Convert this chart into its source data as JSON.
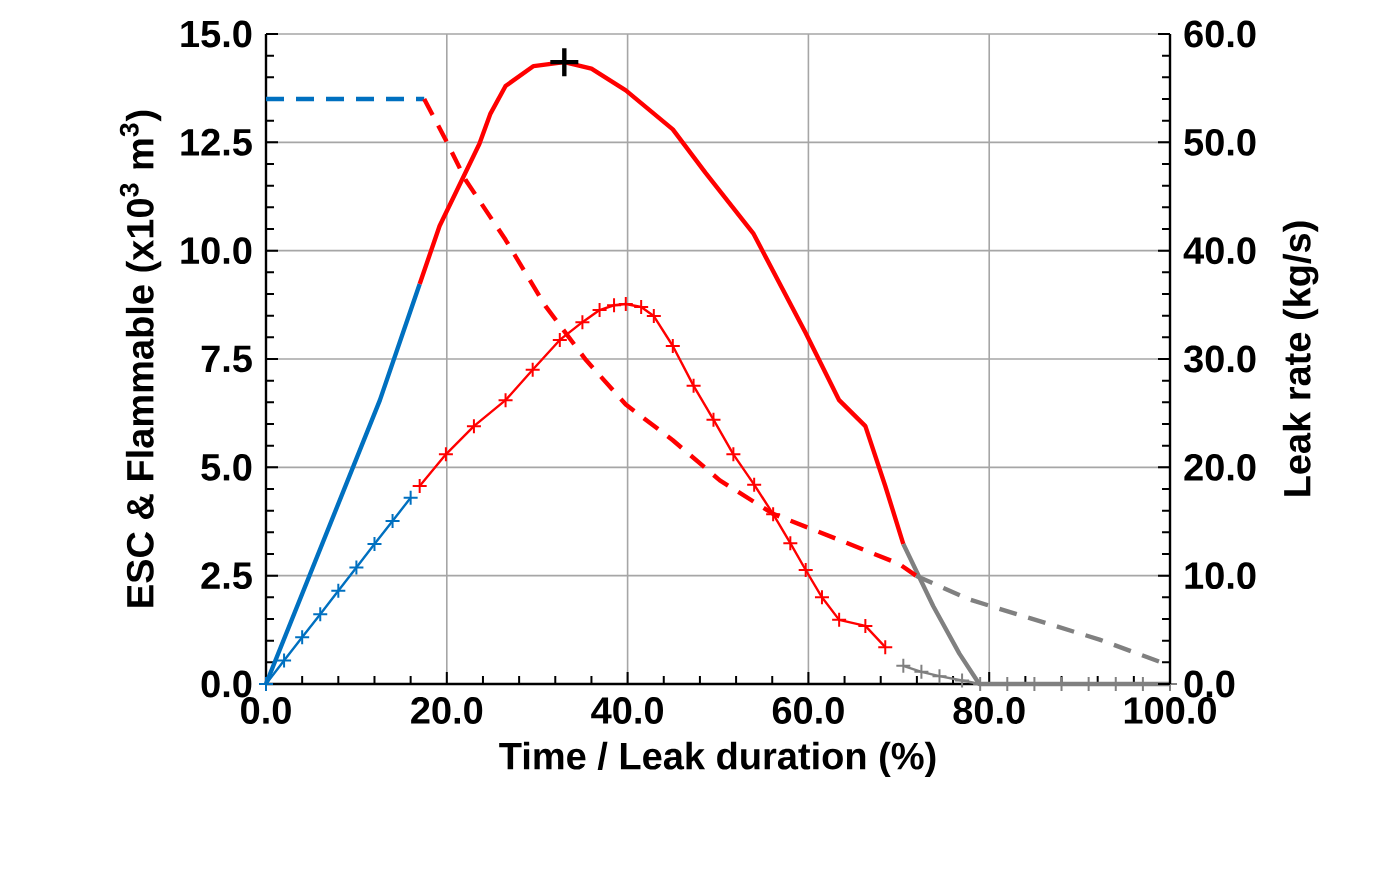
{
  "chart_data": {
    "type": "line",
    "xlabel": "Time / Leak duration (%)",
    "ylabel": "ESC & Flammable (x10$^{3}$ m$^{3}$)",
    "y2label": "Leak rate (kg/s)",
    "xlim": [
      0,
      100
    ],
    "ylim": [
      0,
      15
    ],
    "y2lim": [
      0,
      60
    ],
    "grid": true,
    "xticks": [
      {
        "value": 0,
        "label": "0.0"
      },
      {
        "value": 20,
        "label": "20.0"
      },
      {
        "value": 40,
        "label": "40.0"
      },
      {
        "value": 60,
        "label": "60.0"
      },
      {
        "value": 80,
        "label": "80.0"
      },
      {
        "value": 100,
        "label": "100.0"
      }
    ],
    "yticks": [
      {
        "value": 0,
        "label": "0.0"
      },
      {
        "value": 2.5,
        "label": "2.5"
      },
      {
        "value": 5,
        "label": "5.0"
      },
      {
        "value": 7.5,
        "label": "7.5"
      },
      {
        "value": 10,
        "label": "10.0"
      },
      {
        "value": 12.5,
        "label": "12.5"
      },
      {
        "value": 15,
        "label": "15.0"
      }
    ],
    "y2ticks": [
      {
        "value": 0,
        "label": "0.0"
      },
      {
        "value": 10,
        "label": "10.0"
      },
      {
        "value": 20,
        "label": "20.0"
      },
      {
        "value": 30,
        "label": "30.0"
      },
      {
        "value": 40,
        "label": "40.0"
      },
      {
        "value": 50,
        "label": "50.0"
      },
      {
        "value": 60,
        "label": "60.0"
      }
    ],
    "series": [
      {
        "color": "#0070c0",
        "line_style": "solid",
        "marker": "none",
        "x": [
          0,
          12.6,
          17
        ],
        "values": [
          0,
          6.55,
          9.23
        ]
      },
      {
        "color": "#ff0000",
        "line_style": "solid",
        "marker": "none",
        "x": [
          17,
          19.2,
          23.6,
          24.8,
          26.5,
          29.6,
          33,
          36,
          39.8,
          45,
          48.6,
          53.9,
          59.7,
          63.4,
          66.3,
          68.5,
          70.5
        ],
        "values": [
          9.23,
          10.57,
          12.46,
          13.15,
          13.8,
          14.26,
          14.35,
          14.2,
          13.7,
          12.8,
          11.8,
          10.4,
          8.1,
          6.55,
          5.95,
          4.57,
          3.23
        ]
      },
      {
        "color": "#808080",
        "line_style": "solid",
        "marker": "none",
        "x": [
          70.5,
          73.8,
          76.7,
          78.9,
          100
        ],
        "values": [
          3.23,
          1.8,
          0.7,
          0,
          0
        ]
      },
      {
        "color": "#0070c0",
        "line_style": "dashed",
        "marker": "none",
        "axis": "y2",
        "x": [
          0,
          17.5
        ],
        "values": [
          54,
          54
        ]
      },
      {
        "color": "#ff0000",
        "line_style": "dashed",
        "marker": "none",
        "axis": "y2",
        "x": [
          17.5,
          19.9,
          22.1,
          26.5,
          30.9,
          35.4,
          39.8,
          45,
          50.2,
          56.1,
          63.4,
          70,
          71.9
        ],
        "values": [
          54,
          50.2,
          46.5,
          41,
          34.9,
          29.9,
          25.8,
          22.5,
          18.8,
          15.7,
          13.3,
          11.1,
          10
        ]
      },
      {
        "color": "#808080",
        "line_style": "dashed",
        "marker": "none",
        "axis": "y2",
        "x": [
          71.9,
          77.8,
          92.2,
          100
        ],
        "values": [
          10,
          7.8,
          4.1,
          1.7
        ]
      },
      {
        "color": "#0070c0",
        "line_style": "solid",
        "marker": "cross",
        "x": [
          0,
          2,
          4,
          6,
          8,
          10,
          12,
          14,
          16
        ],
        "values": [
          0,
          0.54,
          1.08,
          1.61,
          2.15,
          2.69,
          3.23,
          3.76,
          4.3
        ]
      },
      {
        "color": "#ff0000",
        "line_style": "solid",
        "marker": "cross",
        "x": [
          17,
          19.9,
          23,
          26.5,
          29.5,
          32.5,
          35,
          36.9,
          38.5,
          39.8,
          41.5,
          42.9,
          45,
          47.3,
          49.5,
          51.7,
          54,
          56.1,
          58,
          59.7,
          61.5,
          63.4,
          66.3,
          68.5
        ],
        "values": [
          4.57,
          5.3,
          5.95,
          6.55,
          7.25,
          7.94,
          8.35,
          8.63,
          8.74,
          8.77,
          8.7,
          8.49,
          7.8,
          6.88,
          6.1,
          5.3,
          4.6,
          3.92,
          3.25,
          2.63,
          2.0,
          1.48,
          1.34,
          0.85
        ]
      },
      {
        "color": "#808080",
        "line_style": "solid",
        "marker": "cross",
        "x": [
          70.5,
          72.5,
          74.5,
          77,
          79,
          82,
          85,
          88,
          91,
          94,
          97,
          100
        ],
        "values": [
          0.42,
          0.28,
          0.18,
          0.08,
          0,
          0,
          0,
          0,
          0,
          0,
          0,
          0
        ]
      },
      {
        "type": "scatter",
        "color": "#000000",
        "marker": "cross",
        "x": [
          33
        ],
        "values": [
          14.35
        ]
      }
    ]
  }
}
